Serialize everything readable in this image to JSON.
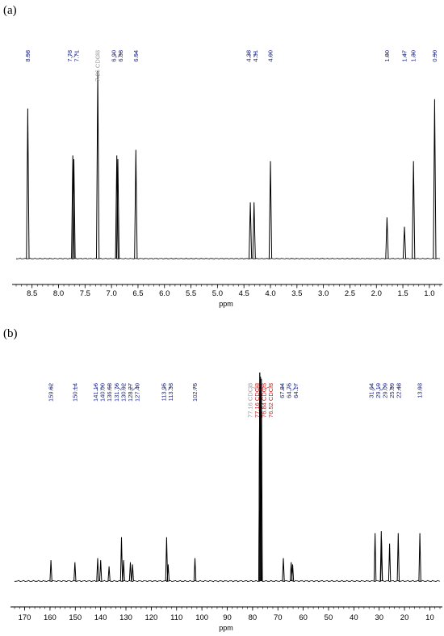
{
  "colors": {
    "peak_label": "#1f2a8c",
    "solvent_label": "#9a9a9a",
    "solvent_label_strong": "#d02020",
    "trace": "#000000"
  },
  "chart_data": [
    {
      "type": "line",
      "panel_label": "(a)",
      "xlabel": "ppm",
      "x_reversed": true,
      "xlim": [
        8.8,
        0.8
      ],
      "ticks": [
        "8.5",
        "8.0",
        "7.5",
        "7.0",
        "6.5",
        "6.0",
        "5.5",
        "5.0",
        "4.5",
        "4.0",
        "3.5",
        "3.0",
        "2.5",
        "2.0",
        "1.5",
        "1.0"
      ],
      "grid": false,
      "peaks": [
        {
          "x": 8.58,
          "label": "8.58",
          "height": 0.8
        },
        {
          "x": 7.73,
          "label": "7.73",
          "height": 0.55
        },
        {
          "x": 7.71,
          "label": "7.71",
          "height": 0.53
        },
        {
          "x": 7.26,
          "label": "7.26 CDCl3",
          "height": 1.0,
          "solvent": true
        },
        {
          "x": 6.9,
          "label": "6.90",
          "height": 0.55
        },
        {
          "x": 6.88,
          "label": "6.88",
          "height": 0.53
        },
        {
          "x": 6.54,
          "label": "6.54",
          "height": 0.58
        },
        {
          "x": 4.38,
          "label": "4.38",
          "height": 0.3
        },
        {
          "x": 4.31,
          "label": "4.31",
          "height": 0.3
        },
        {
          "x": 4.0,
          "label": "4.00",
          "height": 0.52
        },
        {
          "x": 1.8,
          "label": "1.80",
          "height": 0.22
        },
        {
          "x": 1.47,
          "label": "1.47",
          "height": 0.17
        },
        {
          "x": 1.3,
          "label": "1.30",
          "height": 0.52
        },
        {
          "x": 0.9,
          "label": "0.90",
          "height": 0.85
        }
      ]
    },
    {
      "type": "line",
      "panel_label": "(b)",
      "xlabel": "ppm",
      "x_reversed": true,
      "xlim": [
        174,
        6
      ],
      "ticks": [
        "170",
        "160",
        "150",
        "140",
        "130",
        "120",
        "110",
        "100",
        "90",
        "80",
        "70",
        "60",
        "50",
        "40",
        "30",
        "20",
        "10"
      ],
      "grid": false,
      "peaks": [
        {
          "x": 159.62,
          "label": "159.62",
          "height": 0.1
        },
        {
          "x": 150.14,
          "label": "150.14",
          "height": 0.09
        },
        {
          "x": 141.16,
          "label": "141.16",
          "height": 0.11
        },
        {
          "x": 140.0,
          "label": "140.00",
          "height": 0.1
        },
        {
          "x": 136.68,
          "label": "136.68",
          "height": 0.07
        },
        {
          "x": 131.76,
          "label": "131.76",
          "height": 0.21
        },
        {
          "x": 130.92,
          "label": "130.92",
          "height": 0.1
        },
        {
          "x": 128.27,
          "label": "128.27",
          "height": 0.09
        },
        {
          "x": 127.4,
          "label": "127.40",
          "height": 0.08
        },
        {
          "x": 113.95,
          "label": "113.95",
          "height": 0.21
        },
        {
          "x": 113.33,
          "label": "113.33",
          "height": 0.08
        },
        {
          "x": 102.75,
          "label": "102.75",
          "height": 0.11
        },
        {
          "x": 77.16,
          "label": "77.16 CDCl3",
          "height": 1.0,
          "solvent": true,
          "grey": true
        },
        {
          "x": 77.16,
          "label": "77.16 CDCl3",
          "height": 1.0,
          "solvent": true
        },
        {
          "x": 76.84,
          "label": "76.84 CDCl3",
          "height": 0.98,
          "solvent": true
        },
        {
          "x": 76.52,
          "label": "76.52 CDCl3",
          "height": 0.97,
          "solvent": true
        },
        {
          "x": 67.84,
          "label": "67.84",
          "height": 0.11
        },
        {
          "x": 64.75,
          "label": "64.75",
          "height": 0.09
        },
        {
          "x": 64.17,
          "label": "64.17",
          "height": 0.08
        },
        {
          "x": 31.64,
          "label": "31.64",
          "height": 0.23
        },
        {
          "x": 29.19,
          "label": "29.19",
          "height": 0.24
        },
        {
          "x": 29.09,
          "label": "29.09",
          "height": 0.2
        },
        {
          "x": 25.89,
          "label": "25.89",
          "height": 0.18
        },
        {
          "x": 22.48,
          "label": "22.48",
          "height": 0.23
        },
        {
          "x": 13.93,
          "label": "13.93",
          "height": 0.23
        }
      ]
    }
  ]
}
